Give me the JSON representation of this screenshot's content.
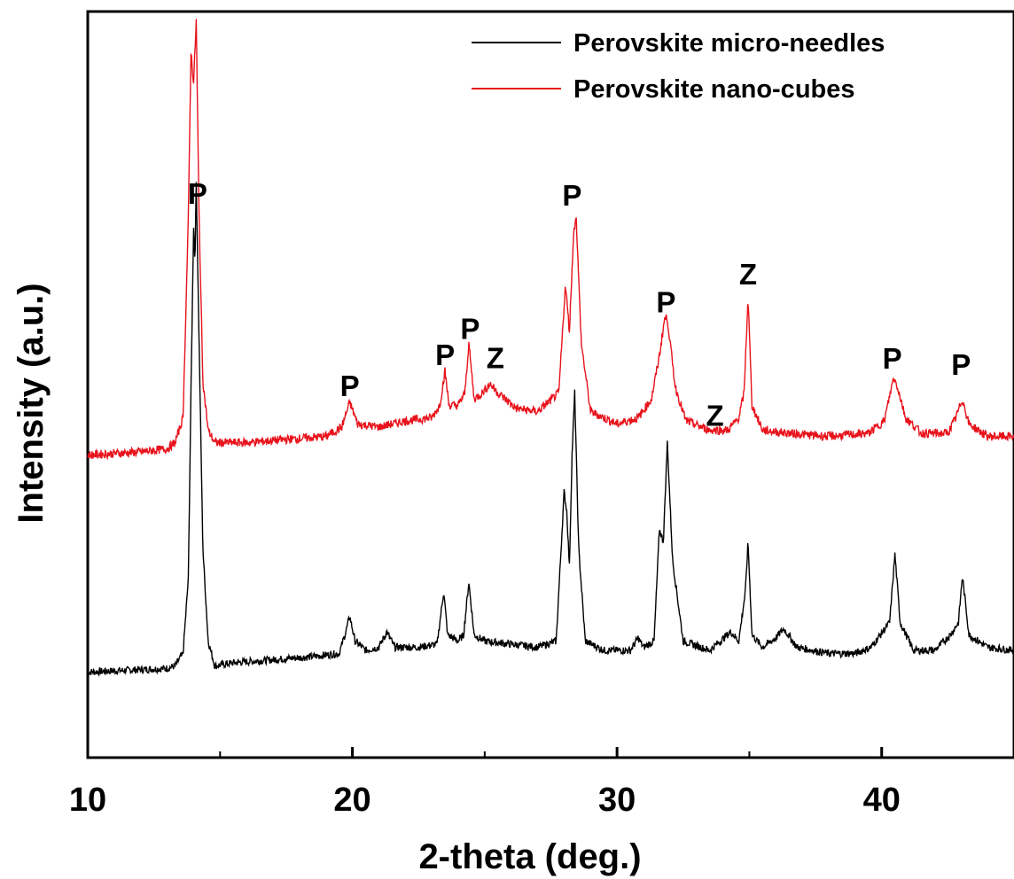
{
  "chart_data": {
    "type": "line",
    "xlabel": "2-theta (deg.)",
    "ylabel": "Intensity (a.u.)",
    "xlim": [
      10,
      45
    ],
    "x_ticks": [
      "10",
      "20",
      "30",
      "40"
    ],
    "y_ticks": [],
    "grid": false,
    "legend_position": "top-right",
    "series": [
      {
        "name": "Perovskite micro-needles",
        "color": "#000000",
        "baseline": 0.045,
        "noise": 0.006,
        "points": [
          [
            10.0,
            0.0
          ],
          [
            11.0,
            0.002
          ],
          [
            12.0,
            0.004
          ],
          [
            13.0,
            0.006
          ],
          [
            13.3,
            0.01
          ],
          [
            13.6,
            0.03
          ],
          [
            13.8,
            0.15
          ],
          [
            13.9,
            0.45
          ],
          [
            14.0,
            0.72
          ],
          [
            14.05,
            0.66
          ],
          [
            14.1,
            0.79
          ],
          [
            14.2,
            0.55
          ],
          [
            14.35,
            0.2
          ],
          [
            14.55,
            0.05
          ],
          [
            14.8,
            0.01
          ],
          [
            15.5,
            0.015
          ],
          [
            17.0,
            0.02
          ],
          [
            18.5,
            0.025
          ],
          [
            19.5,
            0.03
          ],
          [
            19.75,
            0.065
          ],
          [
            19.9,
            0.09
          ],
          [
            20.1,
            0.05
          ],
          [
            20.5,
            0.035
          ],
          [
            21.0,
            0.04
          ],
          [
            21.3,
            0.065
          ],
          [
            21.6,
            0.04
          ],
          [
            22.5,
            0.04
          ],
          [
            23.2,
            0.045
          ],
          [
            23.45,
            0.13
          ],
          [
            23.6,
            0.06
          ],
          [
            24.0,
            0.05
          ],
          [
            24.2,
            0.06
          ],
          [
            24.4,
            0.145
          ],
          [
            24.6,
            0.06
          ],
          [
            25.0,
            0.05
          ],
          [
            26.0,
            0.045
          ],
          [
            27.0,
            0.04
          ],
          [
            27.7,
            0.05
          ],
          [
            28.0,
            0.29
          ],
          [
            28.1,
            0.26
          ],
          [
            28.2,
            0.17
          ],
          [
            28.3,
            0.35
          ],
          [
            28.4,
            0.45
          ],
          [
            28.55,
            0.2
          ],
          [
            28.8,
            0.05
          ],
          [
            29.5,
            0.035
          ],
          [
            30.5,
            0.035
          ],
          [
            30.8,
            0.055
          ],
          [
            31.0,
            0.04
          ],
          [
            31.4,
            0.05
          ],
          [
            31.6,
            0.23
          ],
          [
            31.75,
            0.21
          ],
          [
            31.9,
            0.37
          ],
          [
            32.1,
            0.18
          ],
          [
            32.5,
            0.05
          ],
          [
            33.5,
            0.035
          ],
          [
            34.3,
            0.065
          ],
          [
            34.6,
            0.05
          ],
          [
            34.85,
            0.13
          ],
          [
            34.95,
            0.21
          ],
          [
            35.1,
            0.06
          ],
          [
            35.5,
            0.04
          ],
          [
            36.0,
            0.055
          ],
          [
            36.3,
            0.07
          ],
          [
            36.8,
            0.04
          ],
          [
            38.0,
            0.03
          ],
          [
            39.0,
            0.03
          ],
          [
            39.6,
            0.04
          ],
          [
            40.3,
            0.08
          ],
          [
            40.5,
            0.19
          ],
          [
            40.7,
            0.08
          ],
          [
            41.2,
            0.035
          ],
          [
            42.0,
            0.035
          ],
          [
            42.6,
            0.06
          ],
          [
            42.9,
            0.08
          ],
          [
            43.05,
            0.155
          ],
          [
            43.3,
            0.06
          ],
          [
            44.0,
            0.04
          ],
          [
            45.0,
            0.035
          ]
        ]
      },
      {
        "name": "Perovskite nano-cubes",
        "color": "#e8121b",
        "baseline": 0.395,
        "noise": 0.007,
        "points": [
          [
            10.0,
            0.0
          ],
          [
            12.0,
            0.005
          ],
          [
            13.0,
            0.01
          ],
          [
            13.3,
            0.02
          ],
          [
            13.6,
            0.06
          ],
          [
            13.8,
            0.38
          ],
          [
            13.9,
            0.65
          ],
          [
            14.0,
            0.6
          ],
          [
            14.1,
            0.7
          ],
          [
            14.2,
            0.4
          ],
          [
            14.35,
            0.12
          ],
          [
            14.55,
            0.04
          ],
          [
            14.8,
            0.02
          ],
          [
            16.0,
            0.02
          ],
          [
            17.5,
            0.025
          ],
          [
            19.0,
            0.03
          ],
          [
            19.6,
            0.045
          ],
          [
            19.9,
            0.085
          ],
          [
            20.2,
            0.05
          ],
          [
            21.0,
            0.045
          ],
          [
            22.0,
            0.055
          ],
          [
            23.0,
            0.06
          ],
          [
            23.3,
            0.08
          ],
          [
            23.5,
            0.135
          ],
          [
            23.65,
            0.08
          ],
          [
            24.0,
            0.08
          ],
          [
            24.25,
            0.1
          ],
          [
            24.4,
            0.18
          ],
          [
            24.6,
            0.09
          ],
          [
            24.9,
            0.1
          ],
          [
            25.2,
            0.115
          ],
          [
            25.5,
            0.1
          ],
          [
            26.2,
            0.075
          ],
          [
            27.0,
            0.07
          ],
          [
            27.8,
            0.1
          ],
          [
            28.05,
            0.275
          ],
          [
            28.2,
            0.2
          ],
          [
            28.35,
            0.35
          ],
          [
            28.45,
            0.39
          ],
          [
            28.65,
            0.18
          ],
          [
            29.0,
            0.07
          ],
          [
            30.0,
            0.05
          ],
          [
            30.8,
            0.06
          ],
          [
            31.3,
            0.09
          ],
          [
            31.6,
            0.16
          ],
          [
            31.8,
            0.22
          ],
          [
            31.9,
            0.22
          ],
          [
            32.2,
            0.11
          ],
          [
            32.6,
            0.055
          ],
          [
            33.5,
            0.04
          ],
          [
            34.2,
            0.04
          ],
          [
            34.6,
            0.06
          ],
          [
            34.8,
            0.1
          ],
          [
            34.95,
            0.255
          ],
          [
            35.1,
            0.08
          ],
          [
            35.5,
            0.04
          ],
          [
            36.5,
            0.035
          ],
          [
            38.0,
            0.03
          ],
          [
            39.5,
            0.035
          ],
          [
            40.1,
            0.055
          ],
          [
            40.45,
            0.125
          ],
          [
            40.6,
            0.11
          ],
          [
            40.9,
            0.06
          ],
          [
            41.5,
            0.035
          ],
          [
            42.5,
            0.035
          ],
          [
            42.8,
            0.06
          ],
          [
            43.05,
            0.09
          ],
          [
            43.3,
            0.05
          ],
          [
            44.0,
            0.03
          ],
          [
            45.0,
            0.03
          ]
        ]
      }
    ],
    "annotations": [
      {
        "text": "P",
        "x": 14.15,
        "y": 0.8
      },
      {
        "text": "P",
        "x": 19.9,
        "y": 0.49
      },
      {
        "text": "P",
        "x": 23.5,
        "y": 0.54
      },
      {
        "text": "P",
        "x": 24.45,
        "y": 0.582
      },
      {
        "text": "Z",
        "x": 25.4,
        "y": 0.535
      },
      {
        "text": "P",
        "x": 28.3,
        "y": 0.797
      },
      {
        "text": "P",
        "x": 31.85,
        "y": 0.625
      },
      {
        "text": "Z",
        "x": 33.7,
        "y": 0.442
      },
      {
        "text": "Z",
        "x": 34.95,
        "y": 0.67
      },
      {
        "text": "P",
        "x": 40.4,
        "y": 0.534
      },
      {
        "text": "P",
        "x": 43.0,
        "y": 0.524
      }
    ]
  }
}
